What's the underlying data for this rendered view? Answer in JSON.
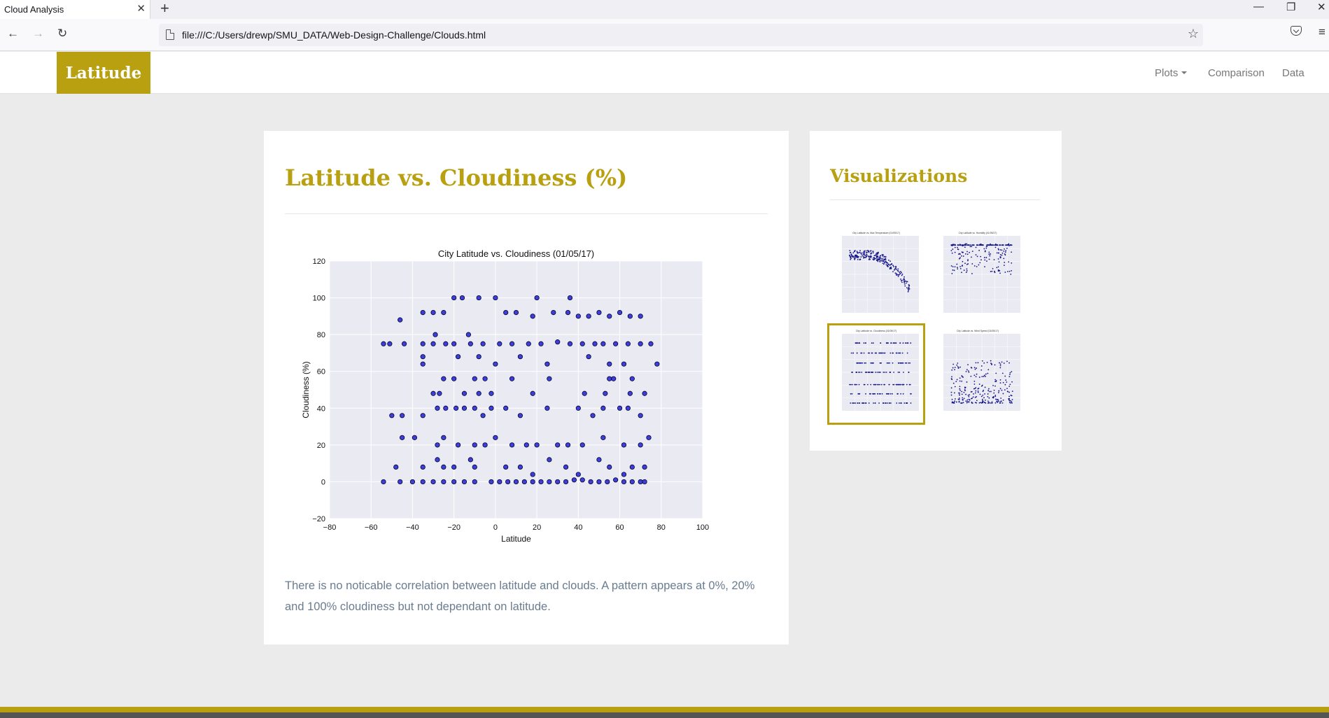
{
  "browser": {
    "tab_title": "Cloud Analysis",
    "tab_close": "✕",
    "new_tab": "+",
    "url": "file:///C:/Users/drewp/SMU_DATA/Web-Design-Challenge/Clouds.html",
    "back": "←",
    "forward": "→",
    "reload": "↻",
    "star": "☆",
    "menu": "≡",
    "minimize": "—",
    "restore": "❐",
    "close": "✕"
  },
  "site": {
    "brand": "Latitude",
    "nav": {
      "plots": "Plots",
      "comparison": "Comparison",
      "data": "Data"
    }
  },
  "main": {
    "title": "Latitude vs. Cloudiness (%)",
    "description": "There is no noticable correlation between latitude and clouds. A pattern appears at 0%, 20% and 100% cloudiness but not dependant on latitude."
  },
  "sidebar": {
    "title": "Visualizations",
    "thumbnails": [
      {
        "title": "City Latitude vs. Max Temperature (01/05/17)",
        "active": false
      },
      {
        "title": "City Latitude vs. Humidity (01/05/17)",
        "active": false
      },
      {
        "title": "City Latitude vs. Cloudiness (01/05/17)",
        "active": true
      },
      {
        "title": "City Latitude vs. Wind Speed (01/05/17)",
        "active": false
      }
    ]
  },
  "colors": {
    "accent": "#b9a010",
    "point_fill": "#2b2bd6",
    "point_edge": "#000033",
    "plot_bg": "#eaeaf2"
  },
  "chart_data": {
    "type": "scatter",
    "title": "City Latitude vs. Cloudiness (01/05/17)",
    "xlabel": "Latitude",
    "ylabel": "Cloudiness (%)",
    "xlim": [
      -80,
      100
    ],
    "ylim": [
      -20,
      120
    ],
    "xticks": [
      "−80",
      "−60",
      "−40",
      "−20",
      "0",
      "20",
      "40",
      "60",
      "80",
      "100"
    ],
    "yticks": [
      "−20",
      "0",
      "20",
      "40",
      "60",
      "80",
      "100",
      "120"
    ],
    "grid": true,
    "points": [
      [
        -54,
        75
      ],
      [
        -51,
        75
      ],
      [
        -46,
        88
      ],
      [
        -44,
        75
      ],
      [
        -39,
        24
      ],
      [
        -35,
        92
      ],
      [
        -30,
        92
      ],
      [
        -29,
        80
      ],
      [
        -25,
        92
      ],
      [
        -20,
        100
      ],
      [
        -16,
        100
      ],
      [
        -13,
        80
      ],
      [
        -8,
        100
      ],
      [
        0,
        100
      ],
      [
        5,
        92
      ],
      [
        20,
        100
      ],
      [
        36,
        100
      ],
      [
        10,
        92
      ],
      [
        18,
        90
      ],
      [
        28,
        92
      ],
      [
        35,
        92
      ],
      [
        40,
        90
      ],
      [
        45,
        90
      ],
      [
        50,
        92
      ],
      [
        55,
        90
      ],
      [
        60,
        92
      ],
      [
        65,
        90
      ],
      [
        70,
        90
      ],
      [
        -35,
        75
      ],
      [
        -30,
        75
      ],
      [
        -24,
        75
      ],
      [
        -20,
        75
      ],
      [
        -12,
        75
      ],
      [
        -6,
        75
      ],
      [
        2,
        75
      ],
      [
        8,
        75
      ],
      [
        16,
        75
      ],
      [
        22,
        75
      ],
      [
        30,
        76
      ],
      [
        36,
        75
      ],
      [
        42,
        75
      ],
      [
        48,
        75
      ],
      [
        52,
        75
      ],
      [
        58,
        75
      ],
      [
        64,
        75
      ],
      [
        70,
        75
      ],
      [
        75,
        75
      ],
      [
        78,
        64
      ],
      [
        -35,
        68
      ],
      [
        -35,
        64
      ],
      [
        -18,
        68
      ],
      [
        -8,
        68
      ],
      [
        0,
        64
      ],
      [
        12,
        68
      ],
      [
        25,
        64
      ],
      [
        45,
        68
      ],
      [
        55,
        64
      ],
      [
        62,
        64
      ],
      [
        -25,
        56
      ],
      [
        -20,
        56
      ],
      [
        -10,
        56
      ],
      [
        -5,
        56
      ],
      [
        8,
        56
      ],
      [
        26,
        56
      ],
      [
        55,
        56
      ],
      [
        57,
        56
      ],
      [
        66,
        56
      ],
      [
        -30,
        48
      ],
      [
        -27,
        48
      ],
      [
        -15,
        48
      ],
      [
        -8,
        48
      ],
      [
        -2,
        48
      ],
      [
        18,
        48
      ],
      [
        43,
        48
      ],
      [
        53,
        48
      ],
      [
        65,
        48
      ],
      [
        72,
        48
      ],
      [
        -50,
        36
      ],
      [
        -45,
        36
      ],
      [
        -35,
        36
      ],
      [
        -28,
        40
      ],
      [
        -24,
        40
      ],
      [
        -19,
        40
      ],
      [
        -15,
        40
      ],
      [
        -10,
        40
      ],
      [
        -6,
        36
      ],
      [
        -2,
        40
      ],
      [
        5,
        40
      ],
      [
        12,
        36
      ],
      [
        25,
        40
      ],
      [
        40,
        40
      ],
      [
        47,
        36
      ],
      [
        52,
        40
      ],
      [
        60,
        40
      ],
      [
        64,
        40
      ],
      [
        70,
        36
      ],
      [
        -45,
        24
      ],
      [
        -28,
        20
      ],
      [
        -25,
        24
      ],
      [
        -18,
        20
      ],
      [
        -10,
        20
      ],
      [
        -5,
        20
      ],
      [
        0,
        24
      ],
      [
        8,
        20
      ],
      [
        15,
        20
      ],
      [
        20,
        20
      ],
      [
        30,
        20
      ],
      [
        35,
        20
      ],
      [
        42,
        20
      ],
      [
        52,
        24
      ],
      [
        62,
        20
      ],
      [
        70,
        20
      ],
      [
        74,
        24
      ],
      [
        -48,
        8
      ],
      [
        -35,
        8
      ],
      [
        -28,
        12
      ],
      [
        -25,
        8
      ],
      [
        -20,
        8
      ],
      [
        -12,
        12
      ],
      [
        -10,
        8
      ],
      [
        5,
        8
      ],
      [
        12,
        8
      ],
      [
        18,
        4
      ],
      [
        26,
        12
      ],
      [
        34,
        8
      ],
      [
        40,
        4
      ],
      [
        50,
        12
      ],
      [
        55,
        8
      ],
      [
        62,
        4
      ],
      [
        66,
        8
      ],
      [
        72,
        8
      ],
      [
        -54,
        0
      ],
      [
        -46,
        0
      ],
      [
        -40,
        0
      ],
      [
        -35,
        0
      ],
      [
        -30,
        0
      ],
      [
        -25,
        0
      ],
      [
        -20,
        0
      ],
      [
        -15,
        0
      ],
      [
        -10,
        0
      ],
      [
        -2,
        0
      ],
      [
        2,
        0
      ],
      [
        6,
        0
      ],
      [
        10,
        0
      ],
      [
        14,
        0
      ],
      [
        18,
        0
      ],
      [
        22,
        0
      ],
      [
        26,
        0
      ],
      [
        30,
        0
      ],
      [
        34,
        0
      ],
      [
        38,
        1
      ],
      [
        42,
        1
      ],
      [
        46,
        0
      ],
      [
        50,
        0
      ],
      [
        54,
        0
      ],
      [
        58,
        1
      ],
      [
        62,
        0
      ],
      [
        66,
        0
      ],
      [
        70,
        0
      ],
      [
        72,
        0
      ]
    ]
  }
}
